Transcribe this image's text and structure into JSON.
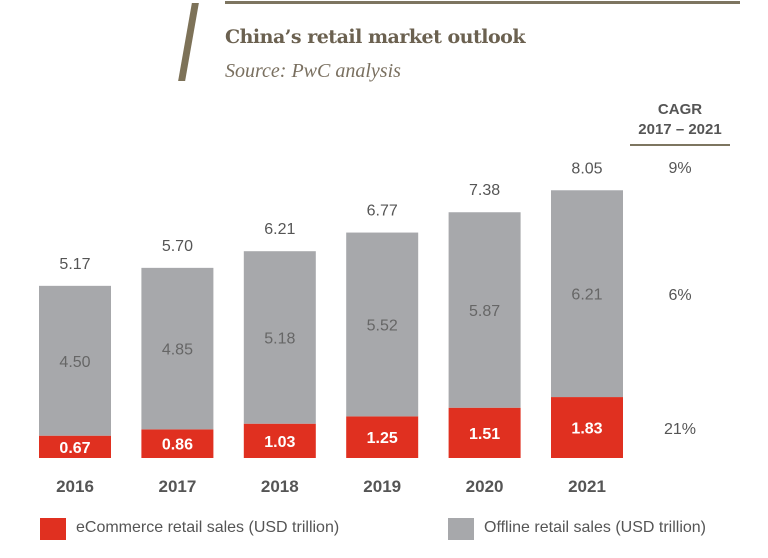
{
  "title": "China’s retail market outlook",
  "source": "Source: PwC analysis",
  "cagr": {
    "header": "CAGR",
    "period": "2017 – 2021",
    "total": "9%",
    "offline": "6%",
    "ecommerce": "21%"
  },
  "colors": {
    "ecommerce": "#e03020",
    "offline": "#a7a8ab",
    "accent": "#7d7560"
  },
  "chart_data": {
    "type": "bar",
    "stacked": true,
    "categories": [
      "2016",
      "2017",
      "2018",
      "2019",
      "2020",
      "2021"
    ],
    "series": [
      {
        "name": "eCommerce retail sales (USD trillion)",
        "values": [
          0.67,
          0.86,
          1.03,
          1.25,
          1.51,
          1.83
        ]
      },
      {
        "name": "Offline retail sales (USD trillion)",
        "values": [
          4.5,
          4.85,
          5.18,
          5.52,
          5.87,
          6.21
        ]
      }
    ],
    "totals": [
      5.17,
      5.7,
      6.21,
      6.77,
      7.38,
      8.05
    ],
    "legend": "bottom",
    "grid": false
  }
}
